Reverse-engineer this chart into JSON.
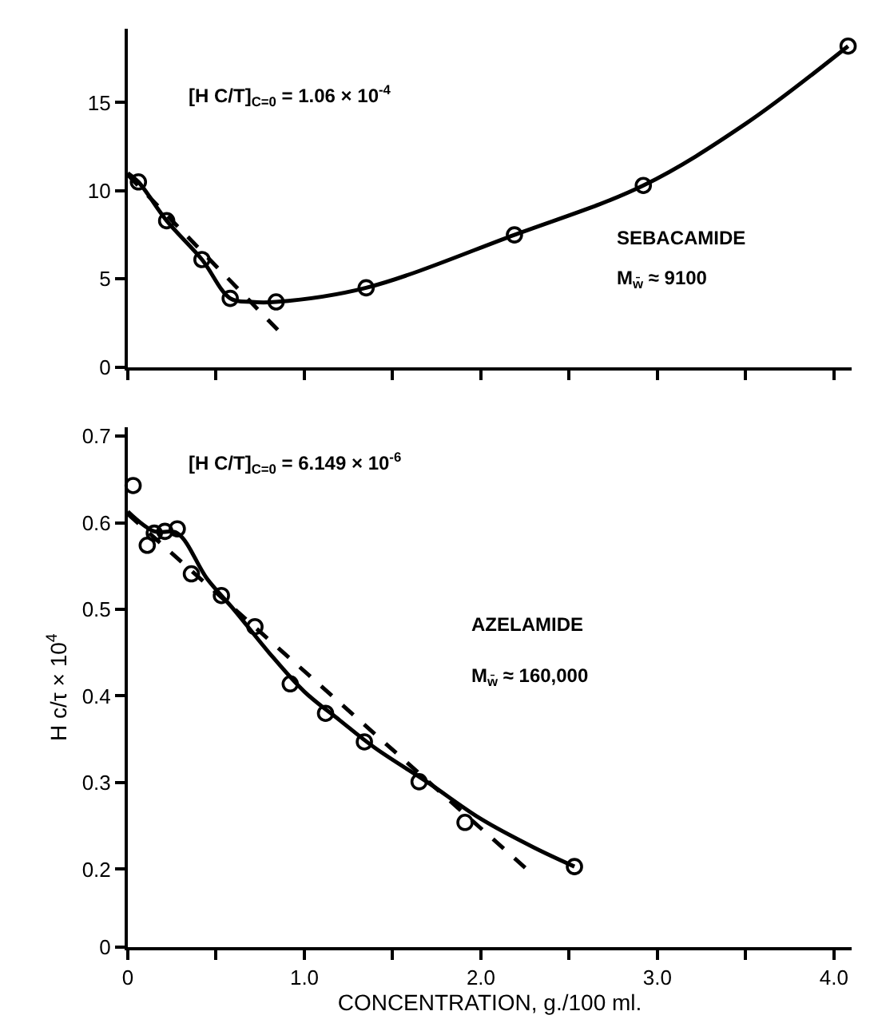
{
  "chart_data": [
    {
      "type": "scatter",
      "tick_labels": "y",
      "xlim": [
        0,
        4.1
      ],
      "ylim": [
        0,
        19.2
      ],
      "yticks": [
        0,
        5,
        10,
        15
      ],
      "annotations": [
        "[H C/T]$_{C=0}$ = 1.06 × 10$^{-4}$",
        "SEBACAMIDE",
        "M$_{w̄}$ ≈ 9100"
      ],
      "series": [
        {
          "type": "line",
          "color": "#000000",
          "marker": "none",
          "line_style": "solid",
          "x": [
            0,
            0.06,
            0.22,
            0.42,
            0.58,
            0.7,
            0.84,
            1.35,
            2.19,
            2.92,
            3.5,
            4.08
          ],
          "values": [
            11.0,
            10.5,
            8.3,
            6.1,
            3.9,
            3.7,
            3.7,
            4.5,
            7.5,
            10.3,
            13.8,
            18.2
          ]
        },
        {
          "type": "line",
          "color": "#000000",
          "marker": "none",
          "line_style": "dashed",
          "x": [
            0,
            0.86
          ],
          "values": [
            10.9,
            2.0
          ]
        },
        {
          "color": "#000000",
          "marker": "circle",
          "x": [
            0.06,
            0.22,
            0.42,
            0.58,
            0.84,
            1.35,
            2.19,
            2.92,
            4.08
          ],
          "values": [
            10.5,
            8.3,
            6.1,
            3.9,
            3.7,
            4.5,
            7.5,
            10.3,
            18.2
          ]
        }
      ]
    },
    {
      "type": "scatter",
      "xlabel": "CONCENTRATION, g./100 ml.",
      "ylabel": "H c/τ × 10$^{4}$",
      "xlim": [
        0,
        4.1
      ],
      "xticks": [
        {
          "value": 0,
          "label": "0"
        },
        {
          "value": 0.5,
          "label": null
        },
        {
          "value": 1,
          "label": "1.0"
        },
        {
          "value": 1.5,
          "label": null
        },
        {
          "value": 2,
          "label": "2.0"
        },
        {
          "value": 2.5,
          "label": null
        },
        {
          "value": 3,
          "label": "3.0"
        },
        {
          "value": 3.5,
          "label": null
        },
        {
          "value": 4,
          "label": "4.0"
        }
      ],
      "ylim": [
        0.11,
        0.71
      ],
      "yticks": [
        {
          "value": 0.11,
          "label": "0"
        },
        0.2,
        0.3,
        0.4,
        0.5,
        0.6,
        0.7
      ],
      "annotations": [
        "[H C/T]$_{C=0}$ = 6.149 × 10$^{-6}$",
        "AZELAMIDE",
        "M$_{w̄}$ ≈ 160,000"
      ],
      "series": [
        {
          "type": "line",
          "color": "#000000",
          "marker": "none",
          "line_style": "solid",
          "x": [
            0,
            0.15,
            0.28,
            0.45,
            0.6,
            0.8,
            1.0,
            1.2,
            1.4,
            1.7,
            2.0,
            2.3,
            2.53
          ],
          "values": [
            0.613,
            0.59,
            0.588,
            0.535,
            0.5,
            0.45,
            0.405,
            0.372,
            0.34,
            0.3,
            0.258,
            0.225,
            0.203
          ]
        },
        {
          "type": "line",
          "color": "#000000",
          "marker": "none",
          "line_style": "dashed",
          "x": [
            0,
            2.26
          ],
          "values": [
            0.61,
            0.2
          ]
        },
        {
          "color": "#000000",
          "marker": "circle",
          "x": [
            0.03,
            0.11,
            0.15,
            0.21,
            0.28,
            0.36,
            0.53,
            0.72,
            0.92,
            1.12,
            1.34,
            1.65,
            1.91,
            2.53
          ],
          "values": [
            0.643,
            0.574,
            0.588,
            0.59,
            0.593,
            0.541,
            0.516,
            0.48,
            0.414,
            0.38,
            0.347,
            0.301,
            0.254,
            0.203
          ]
        }
      ]
    }
  ]
}
